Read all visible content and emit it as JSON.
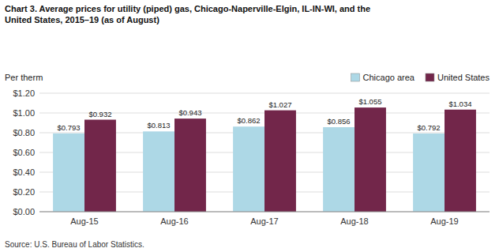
{
  "chart_data": {
    "type": "bar",
    "title": "Chart 3. Average prices for utility (piped) gas, Chicago-Naperville-Elgin, IL-IN-WI, and the\nUnited States, 2015–19 (as of August)",
    "ylabel": "Per therm",
    "source": "Source: U.S. Bureau of Labor Statistics.",
    "categories": [
      "Aug-15",
      "Aug-16",
      "Aug-17",
      "Aug-18",
      "Aug-19"
    ],
    "series": [
      {
        "name": "Chicago area",
        "color": "#ADD8E6",
        "values": [
          0.793,
          0.813,
          0.862,
          0.856,
          0.792
        ],
        "value_labels": [
          "$0.793",
          "$0.813",
          "$0.862",
          "$0.856",
          "$0.792"
        ]
      },
      {
        "name": "United States",
        "color": "#72264A",
        "values": [
          0.932,
          0.943,
          1.027,
          1.055,
          1.034
        ],
        "value_labels": [
          "$0.932",
          "$0.943",
          "$1.027",
          "$1.055",
          "$1.034"
        ]
      }
    ],
    "ylim": [
      0,
      1.2
    ],
    "yticks": [
      {
        "value": 0.0,
        "label": "$0.00"
      },
      {
        "value": 0.2,
        "label": "$0.20"
      },
      {
        "value": 0.4,
        "label": "$0.40"
      },
      {
        "value": 0.6,
        "label": "$0.60"
      },
      {
        "value": 0.8,
        "label": "$0.80"
      },
      {
        "value": 1.0,
        "label": "$1.00"
      },
      {
        "value": 1.2,
        "label": "$1.20"
      }
    ],
    "grid": true,
    "legend": "top-right",
    "data_labels": true
  }
}
